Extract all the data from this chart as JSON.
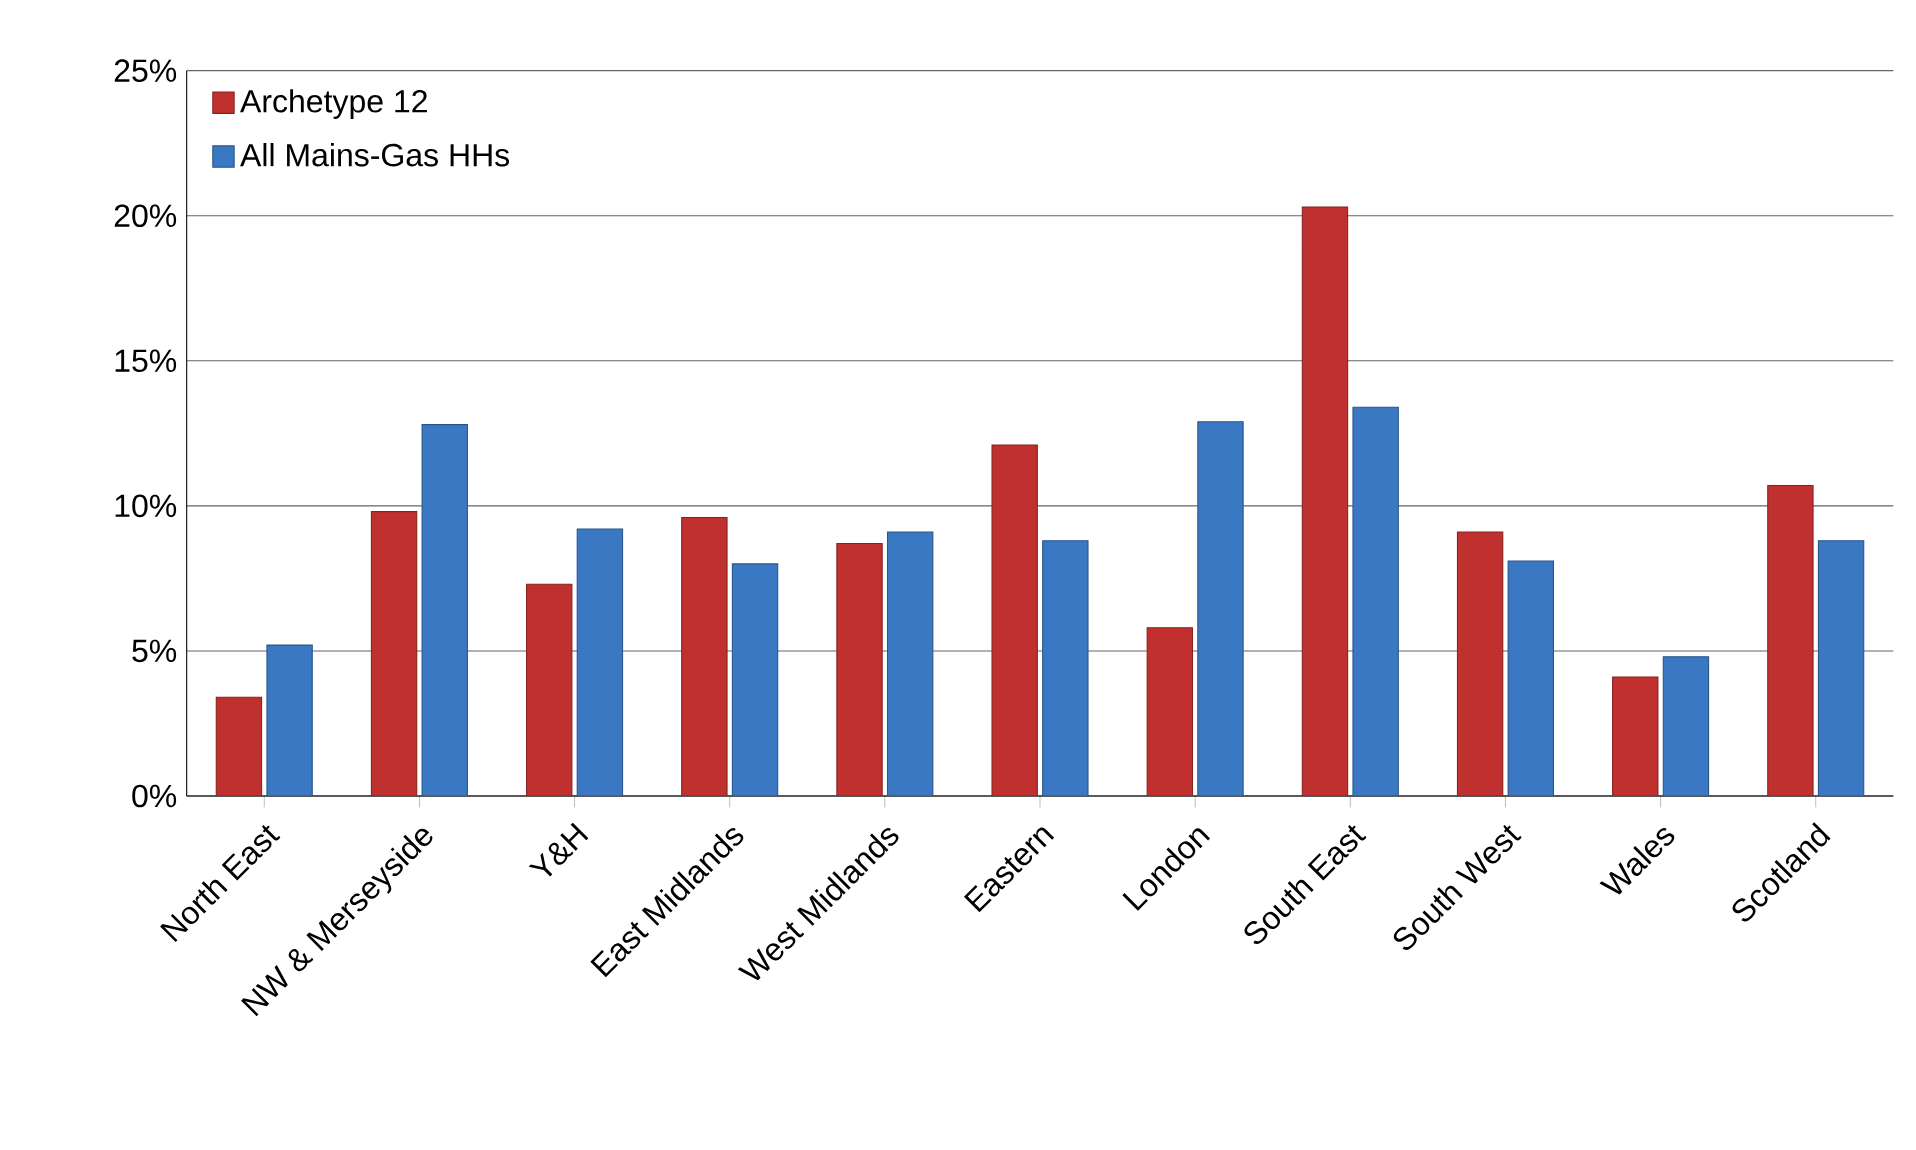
{
  "chart_data": {
    "type": "bar",
    "categories": [
      "North East",
      "NW & Merseyside",
      "Y&H",
      "East Midlands",
      "West Midlands",
      "Eastern",
      "London",
      "South East",
      "South West",
      "Wales",
      "Scotland"
    ],
    "series": [
      {
        "name": "Archetype 12",
        "color": "#c0302e",
        "values": [
          3.4,
          9.8,
          7.3,
          9.6,
          8.7,
          12.1,
          5.8,
          20.3,
          9.1,
          4.1,
          10.7
        ]
      },
      {
        "name": "All Mains-Gas  HHs",
        "color": "#3a78c4",
        "values": [
          5.2,
          12.8,
          9.2,
          8.0,
          9.1,
          8.8,
          12.9,
          13.4,
          8.1,
          4.8,
          8.8
        ]
      }
    ],
    "ylim": [
      0,
      25
    ],
    "yticks": [
      {
        "value": 0,
        "label": "0%"
      },
      {
        "value": 5,
        "label": "5%"
      },
      {
        "value": 10,
        "label": "10%"
      },
      {
        "value": 15,
        "label": "15%"
      },
      {
        "value": 20,
        "label": "20%"
      },
      {
        "value": 25,
        "label": "25%"
      }
    ],
    "grid": "y",
    "legend": "top left"
  }
}
